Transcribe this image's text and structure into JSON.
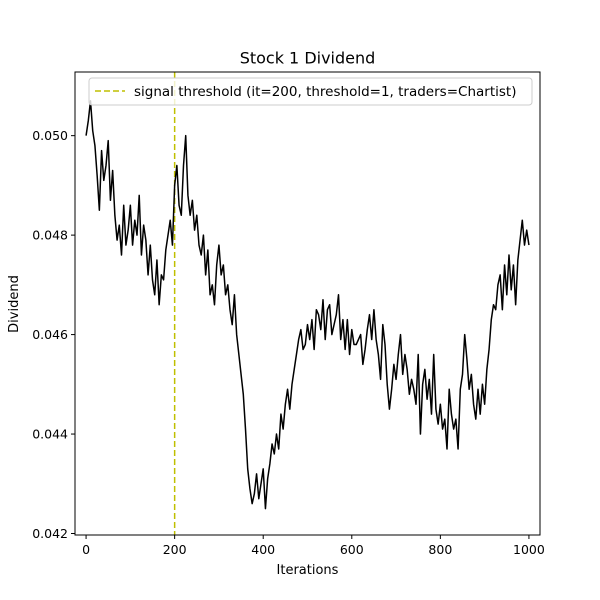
{
  "chart_data": {
    "type": "line",
    "title": "Stock 1 Dividend",
    "xlabel": "Iterations",
    "ylabel": "Dividend",
    "xlim": [
      -25,
      1025
    ],
    "ylim": [
      0.04197,
      0.05128
    ],
    "x_ticks": [
      0,
      200,
      400,
      600,
      800,
      1000
    ],
    "x_tick_labels": [
      "0",
      "200",
      "400",
      "600",
      "800",
      "1000"
    ],
    "y_ticks": [
      0.042,
      0.044,
      0.046,
      0.048,
      0.05
    ],
    "y_tick_labels": [
      "0.042",
      "0.044",
      "0.046",
      "0.048",
      "0.050"
    ],
    "grid": false,
    "legend_position": "top",
    "series": [
      {
        "name": "",
        "color": "#000000",
        "x": [
          0,
          5,
          10,
          15,
          20,
          25,
          30,
          35,
          40,
          45,
          50,
          55,
          60,
          65,
          70,
          75,
          80,
          85,
          90,
          95,
          100,
          105,
          110,
          115,
          120,
          125,
          130,
          135,
          140,
          145,
          150,
          155,
          160,
          165,
          170,
          175,
          180,
          185,
          190,
          195,
          200,
          205,
          210,
          215,
          220,
          225,
          230,
          235,
          240,
          245,
          250,
          255,
          260,
          265,
          270,
          275,
          280,
          285,
          290,
          295,
          300,
          305,
          310,
          315,
          320,
          325,
          330,
          335,
          340,
          345,
          350,
          355,
          360,
          365,
          370,
          375,
          380,
          385,
          390,
          395,
          400,
          405,
          410,
          415,
          420,
          425,
          430,
          435,
          440,
          445,
          450,
          455,
          460,
          465,
          470,
          475,
          480,
          485,
          490,
          495,
          500,
          505,
          510,
          515,
          520,
          525,
          530,
          535,
          540,
          545,
          550,
          555,
          560,
          565,
          570,
          575,
          580,
          585,
          590,
          595,
          600,
          605,
          610,
          615,
          620,
          625,
          630,
          635,
          640,
          645,
          650,
          655,
          660,
          665,
          670,
          675,
          680,
          685,
          690,
          695,
          700,
          705,
          710,
          715,
          720,
          725,
          730,
          735,
          740,
          745,
          750,
          755,
          760,
          765,
          770,
          775,
          780,
          785,
          790,
          795,
          800,
          805,
          810,
          815,
          820,
          825,
          830,
          835,
          840,
          845,
          850,
          855,
          860,
          865,
          870,
          875,
          880,
          885,
          890,
          895,
          900,
          905,
          910,
          915,
          920,
          925,
          930,
          935,
          940,
          945,
          950,
          955,
          960,
          965,
          970,
          975,
          980,
          985,
          990,
          995,
          1000
        ],
        "values": [
          0.05,
          0.0503,
          0.0507,
          0.0501,
          0.0498,
          0.0492,
          0.0485,
          0.0497,
          0.0491,
          0.0494,
          0.0499,
          0.0487,
          0.0493,
          0.0484,
          0.0479,
          0.0482,
          0.0476,
          0.0486,
          0.0478,
          0.0481,
          0.0486,
          0.0478,
          0.0483,
          0.048,
          0.0488,
          0.0476,
          0.0482,
          0.0479,
          0.0472,
          0.0478,
          0.0471,
          0.0468,
          0.0475,
          0.0466,
          0.0472,
          0.0471,
          0.0477,
          0.048,
          0.0483,
          0.0478,
          0.049,
          0.0494,
          0.0486,
          0.0484,
          0.0494,
          0.05,
          0.0488,
          0.0484,
          0.0487,
          0.0481,
          0.0484,
          0.0478,
          0.0476,
          0.048,
          0.0472,
          0.0477,
          0.0468,
          0.047,
          0.0466,
          0.0474,
          0.0478,
          0.0472,
          0.0474,
          0.0468,
          0.047,
          0.0465,
          0.0462,
          0.0468,
          0.046,
          0.0456,
          0.0452,
          0.0448,
          0.0441,
          0.0433,
          0.0429,
          0.0426,
          0.0428,
          0.0432,
          0.0427,
          0.043,
          0.0433,
          0.0425,
          0.0431,
          0.0434,
          0.0438,
          0.0436,
          0.044,
          0.0437,
          0.0444,
          0.0441,
          0.0446,
          0.0449,
          0.0445,
          0.045,
          0.0453,
          0.0456,
          0.0459,
          0.0461,
          0.0457,
          0.0458,
          0.0462,
          0.0459,
          0.0463,
          0.0457,
          0.0465,
          0.0464,
          0.0461,
          0.0467,
          0.0459,
          0.0465,
          0.0466,
          0.046,
          0.0462,
          0.0464,
          0.0468,
          0.0459,
          0.0463,
          0.0457,
          0.0463,
          0.0456,
          0.0461,
          0.0458,
          0.0458,
          0.0459,
          0.046,
          0.0454,
          0.0457,
          0.0461,
          0.0464,
          0.0459,
          0.0465,
          0.0459,
          0.0456,
          0.0451,
          0.0462,
          0.0458,
          0.045,
          0.0445,
          0.0449,
          0.0454,
          0.0451,
          0.0456,
          0.046,
          0.0452,
          0.0456,
          0.0453,
          0.0448,
          0.0451,
          0.0449,
          0.0446,
          0.0456,
          0.044,
          0.045,
          0.0453,
          0.0447,
          0.0451,
          0.0444,
          0.0456,
          0.0445,
          0.0442,
          0.0446,
          0.0441,
          0.0443,
          0.0437,
          0.0449,
          0.0444,
          0.0441,
          0.0443,
          0.0437,
          0.0449,
          0.0452,
          0.046,
          0.0455,
          0.0449,
          0.0452,
          0.0446,
          0.0443,
          0.0449,
          0.0444,
          0.045,
          0.0446,
          0.0453,
          0.0457,
          0.0463,
          0.0466,
          0.0465,
          0.047,
          0.0472,
          0.0465,
          0.0474,
          0.0468,
          0.0476,
          0.0469,
          0.0474,
          0.0466,
          0.0475,
          0.0479,
          0.0483,
          0.0478,
          0.0481,
          0.0478
        ]
      },
      {
        "name": "signal threshold (it=200, threshold=1, traders=Chartist)",
        "type": "vline",
        "x": 200,
        "color": "#bfbf00",
        "style": "dashed"
      }
    ]
  }
}
